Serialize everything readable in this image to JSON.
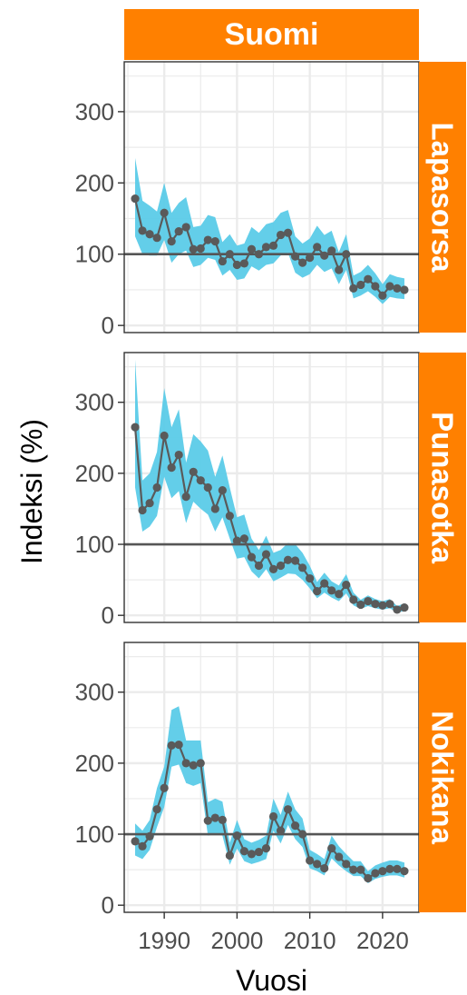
{
  "chart_data": {
    "type": "line",
    "title": "Suomi",
    "xlabel": "Vuosi",
    "ylabel": "Indeksi (%)",
    "xlim": [
      1984.5,
      2025
    ],
    "ylim": [
      -10,
      370
    ],
    "x_ticks": [
      1990,
      2000,
      2010,
      2020
    ],
    "y_ticks": [
      0,
      100,
      200,
      300
    ],
    "reference_line": 100,
    "grid": true,
    "colors": {
      "strip": "#ff8000",
      "band": "#5bcbe8",
      "line": "#5a5a5a",
      "ref_line": "#555555",
      "grid": "#ebebeb"
    },
    "years": [
      1986,
      1987,
      1988,
      1989,
      1990,
      1991,
      1992,
      1993,
      1994,
      1995,
      1996,
      1997,
      1998,
      1999,
      2000,
      2001,
      2002,
      2003,
      2004,
      2005,
      2006,
      2007,
      2008,
      2009,
      2010,
      2011,
      2012,
      2013,
      2014,
      2015,
      2016,
      2017,
      2018,
      2019,
      2020,
      2021,
      2022,
      2023
    ],
    "panels": [
      {
        "name": "Lapasorsa",
        "values": [
          178,
          133,
          128,
          123,
          158,
          118,
          132,
          138,
          107,
          108,
          120,
          118,
          90,
          100,
          85,
          87,
          107,
          100,
          110,
          112,
          127,
          130,
          97,
          88,
          95,
          110,
          98,
          105,
          78,
          100,
          52,
          57,
          65,
          55,
          42,
          55,
          52,
          50
        ],
        "lower": [
          125,
          100,
          98,
          98,
          120,
          88,
          100,
          105,
          82,
          85,
          95,
          92,
          70,
          78,
          64,
          66,
          83,
          77,
          85,
          87,
          98,
          102,
          74,
          67,
          72,
          85,
          75,
          80,
          58,
          78,
          38,
          42,
          48,
          40,
          30,
          40,
          38,
          37
        ],
        "upper": [
          235,
          175,
          168,
          160,
          200,
          158,
          172,
          180,
          138,
          140,
          155,
          152,
          117,
          128,
          112,
          115,
          138,
          130,
          142,
          145,
          158,
          162,
          125,
          115,
          122,
          140,
          127,
          133,
          103,
          128,
          70,
          75,
          85,
          73,
          58,
          72,
          68,
          66
        ]
      },
      {
        "name": "Punasotka",
        "values": [
          265,
          148,
          158,
          180,
          253,
          208,
          226,
          167,
          202,
          190,
          180,
          150,
          176,
          140,
          105,
          108,
          82,
          70,
          86,
          65,
          70,
          78,
          77,
          67,
          52,
          34,
          45,
          35,
          30,
          43,
          22,
          15,
          20,
          16,
          14,
          16,
          8,
          11
        ],
        "lower": [
          180,
          118,
          125,
          140,
          195,
          165,
          175,
          130,
          160,
          150,
          142,
          118,
          138,
          108,
          80,
          82,
          62,
          52,
          65,
          48,
          53,
          59,
          58,
          50,
          38,
          24,
          32,
          25,
          20,
          31,
          14,
          9,
          13,
          10,
          8,
          10,
          4,
          6
        ],
        "upper": [
          360,
          190,
          200,
          230,
          320,
          265,
          290,
          215,
          255,
          245,
          232,
          195,
          225,
          180,
          138,
          142,
          108,
          92,
          112,
          88,
          92,
          102,
          100,
          88,
          70,
          47,
          60,
          48,
          42,
          58,
          32,
          22,
          28,
          23,
          20,
          23,
          13,
          17
        ]
      },
      {
        "name": "Nokikana",
        "values": [
          90,
          83,
          97,
          135,
          165,
          225,
          226,
          200,
          197,
          200,
          119,
          123,
          120,
          70,
          98,
          76,
          72,
          75,
          80,
          125,
          105,
          135,
          112,
          100,
          63,
          58,
          52,
          80,
          68,
          58,
          50,
          50,
          38,
          45,
          48,
          51,
          51,
          48
        ],
        "lower": [
          70,
          65,
          78,
          110,
          138,
          195,
          198,
          172,
          168,
          172,
          98,
          100,
          98,
          57,
          80,
          62,
          58,
          61,
          65,
          105,
          87,
          113,
          93,
          82,
          52,
          48,
          42,
          66,
          56,
          48,
          41,
          41,
          31,
          37,
          40,
          42,
          42,
          39
        ],
        "upper": [
          115,
          105,
          120,
          165,
          195,
          275,
          280,
          232,
          232,
          232,
          145,
          150,
          146,
          88,
          120,
          93,
          88,
          92,
          98,
          150,
          127,
          160,
          135,
          122,
          78,
          72,
          65,
          98,
          83,
          72,
          62,
          62,
          48,
          56,
          60,
          63,
          63,
          60
        ]
      }
    ]
  }
}
